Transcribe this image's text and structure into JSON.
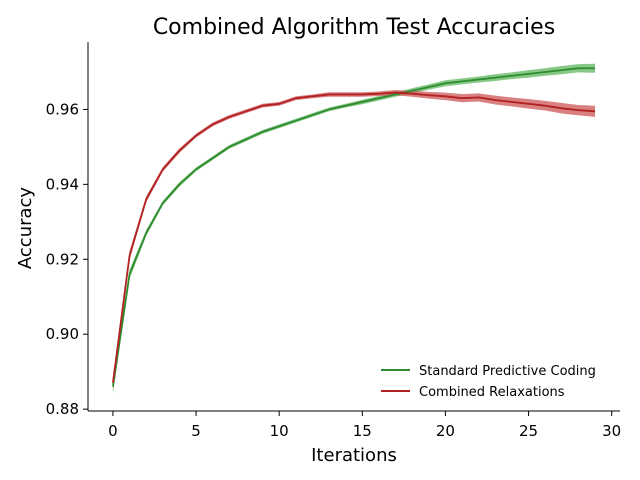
{
  "chart_data": {
    "type": "line",
    "title": "Combined Algorithm Test Accuracies",
    "xlabel": "Iterations",
    "ylabel": "Accuracy",
    "xlim": [
      -1.5,
      30.5
    ],
    "ylim": [
      0.8795,
      0.978
    ],
    "x_ticks": [
      0,
      5,
      10,
      15,
      20,
      25,
      30
    ],
    "y_ticks": [
      0.88,
      0.9,
      0.92,
      0.94,
      0.96
    ],
    "x_tick_labels": [
      "0",
      "5",
      "10",
      "15",
      "20",
      "25",
      "30"
    ],
    "y_tick_labels": [
      "0.88",
      "0.90",
      "0.92",
      "0.94",
      "0.96"
    ],
    "grid": false,
    "legend_position": "lower-right",
    "x": [
      0,
      1,
      2,
      3,
      4,
      5,
      6,
      7,
      8,
      9,
      10,
      11,
      12,
      13,
      14,
      15,
      16,
      17,
      18,
      19,
      20,
      21,
      22,
      23,
      24,
      25,
      26,
      27,
      28,
      29
    ],
    "series": [
      {
        "name": "Standard Predictive Coding",
        "color": "#2e8b2e",
        "band_color": "#5fb65f",
        "values": [
          0.886,
          0.916,
          0.927,
          0.935,
          0.94,
          0.944,
          0.947,
          0.95,
          0.952,
          0.954,
          0.9555,
          0.957,
          0.9585,
          0.96,
          0.961,
          0.962,
          0.963,
          0.964,
          0.965,
          0.966,
          0.967,
          0.9675,
          0.968,
          0.9685,
          0.969,
          0.9695,
          0.97,
          0.9705,
          0.971,
          0.971
        ],
        "band": [
          0.0018,
          0.0012,
          0.0008,
          0.0006,
          0.0006,
          0.0005,
          0.0005,
          0.0005,
          0.0005,
          0.0005,
          0.0005,
          0.0005,
          0.0005,
          0.0005,
          0.0005,
          0.0006,
          0.0006,
          0.0006,
          0.0007,
          0.0007,
          0.0008,
          0.0008,
          0.0008,
          0.0009,
          0.0009,
          0.001,
          0.001,
          0.0011,
          0.0011,
          0.0012
        ]
      },
      {
        "name": "Combined Relaxations",
        "color": "#b22222",
        "band_color": "#cc5555",
        "values": [
          0.887,
          0.921,
          0.936,
          0.944,
          0.949,
          0.953,
          0.956,
          0.958,
          0.9595,
          0.961,
          0.9615,
          0.963,
          0.9635,
          0.964,
          0.964,
          0.964,
          0.9642,
          0.9645,
          0.9642,
          0.9638,
          0.9635,
          0.963,
          0.9632,
          0.9625,
          0.962,
          0.9615,
          0.961,
          0.9603,
          0.9598,
          0.9595
        ],
        "band": [
          0.0018,
          0.0012,
          0.0008,
          0.0006,
          0.0006,
          0.0005,
          0.0005,
          0.0005,
          0.0005,
          0.0005,
          0.0005,
          0.0005,
          0.0005,
          0.0006,
          0.0006,
          0.0006,
          0.0006,
          0.0007,
          0.0008,
          0.0009,
          0.001,
          0.0011,
          0.0011,
          0.0012,
          0.0012,
          0.0013,
          0.0013,
          0.0014,
          0.0014,
          0.0015
        ]
      }
    ]
  }
}
